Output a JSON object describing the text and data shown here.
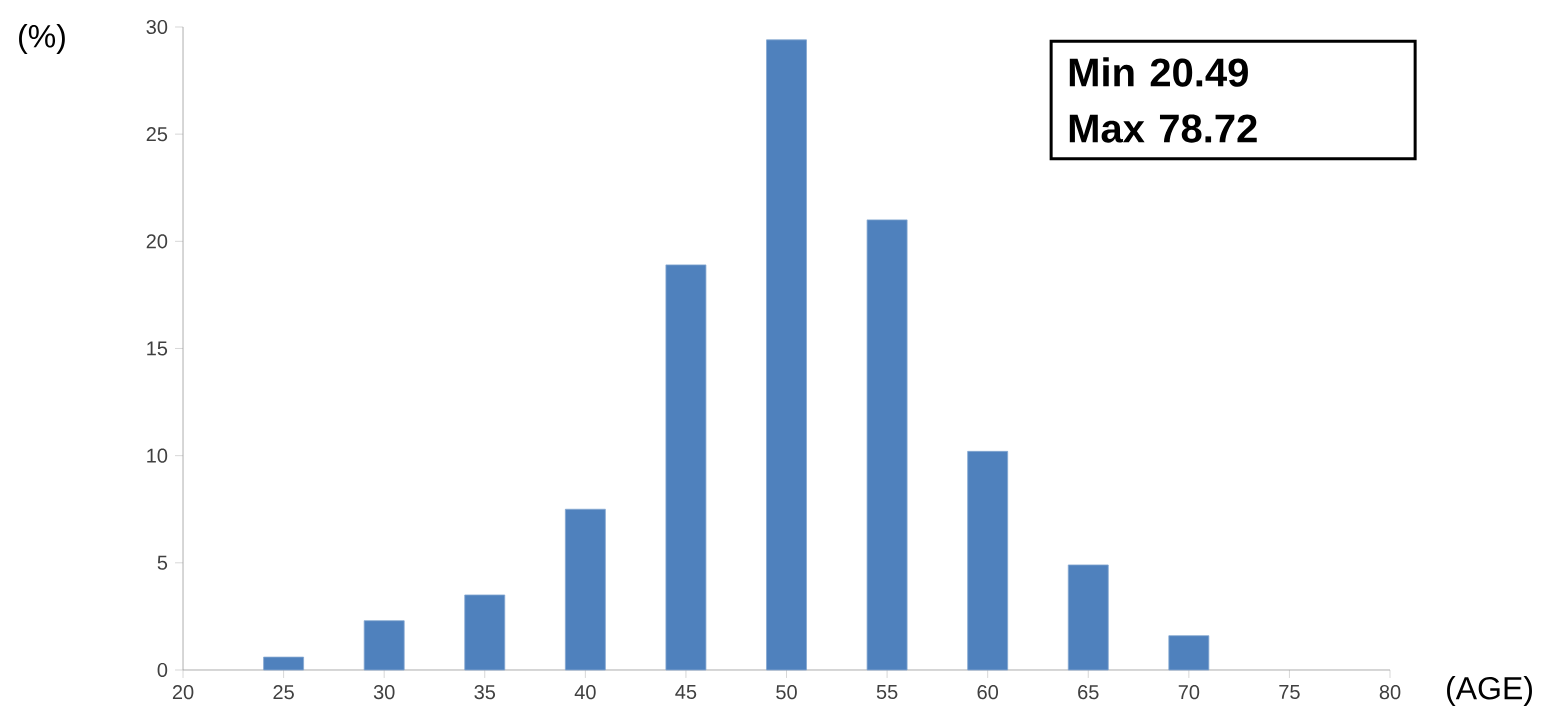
{
  "chart_data": {
    "type": "bar",
    "xlabel": "(AGE)",
    "ylabel": "(%)",
    "categories": [
      "20",
      "25",
      "30",
      "35",
      "40",
      "45",
      "50",
      "55",
      "60",
      "65",
      "70",
      "75",
      "80"
    ],
    "values": [
      null,
      0.6,
      2.3,
      3.5,
      7.5,
      18.9,
      29.4,
      21.0,
      10.2,
      4.9,
      1.6,
      null,
      null
    ],
    "color": "#4f81bd",
    "ylim": [
      0,
      30
    ],
    "yticks": [
      0,
      5,
      10,
      15,
      20,
      25,
      30
    ],
    "grid": false,
    "legend": false,
    "annotations": [
      "Min 20.49",
      "Max 78.72"
    ]
  }
}
